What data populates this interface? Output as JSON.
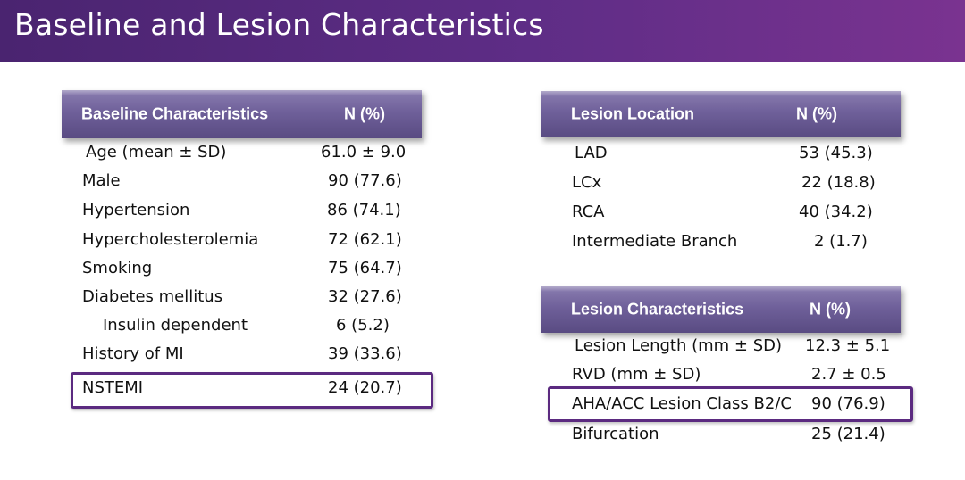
{
  "slide": {
    "title": "Baseline and Lesion Characteristics"
  },
  "baseline": {
    "header_label": "Baseline Characteristics",
    "header_value": "N (%)",
    "rows": [
      {
        "label": "Age (mean ± SD)",
        "value": "61.0 ± 9.0"
      },
      {
        "label": "Male",
        "value": "90 (77.6)"
      },
      {
        "label": "Hypertension",
        "value": "86 (74.1)"
      },
      {
        "label": "Hypercholesterolemia",
        "value": "72 (62.1)"
      },
      {
        "label": "Smoking",
        "value": "75 (64.7)"
      },
      {
        "label": "Diabetes mellitus",
        "value": "32 (27.6)"
      },
      {
        "label": "Insulin dependent",
        "value": "6 (5.2)"
      },
      {
        "label": "History of MI",
        "value": "39 (33.6)"
      },
      {
        "label": "NSTEMI",
        "value": "24 (20.7)"
      }
    ]
  },
  "location": {
    "header_label": "Lesion Location",
    "header_value": "N (%)",
    "rows": [
      {
        "label": "LAD",
        "value": "53 (45.3)"
      },
      {
        "label": "LCx",
        "value": "22 (18.8)"
      },
      {
        "label": "RCA",
        "value": "40 (34.2)"
      },
      {
        "label": "Intermediate Branch",
        "value": "2 (1.7)"
      }
    ]
  },
  "lesion": {
    "header_label": "Lesion Characteristics",
    "header_value": "N (%)",
    "rows": [
      {
        "label": "Lesion Length (mm ± SD)",
        "value": "12.3 ±  5.1"
      },
      {
        "label": "RVD (mm ± SD)",
        "value": "2.7 ± 0.5"
      },
      {
        "label": "AHA/ACC Lesion Class B2/C",
        "value": "90 (76.9)"
      },
      {
        "label": "Bifurcation",
        "value": "25 (21.4)"
      }
    ]
  },
  "colors": {
    "title_bar": "#5e2d86",
    "header_fill": "#6f609a",
    "highlight_border": "#5b2a80"
  }
}
